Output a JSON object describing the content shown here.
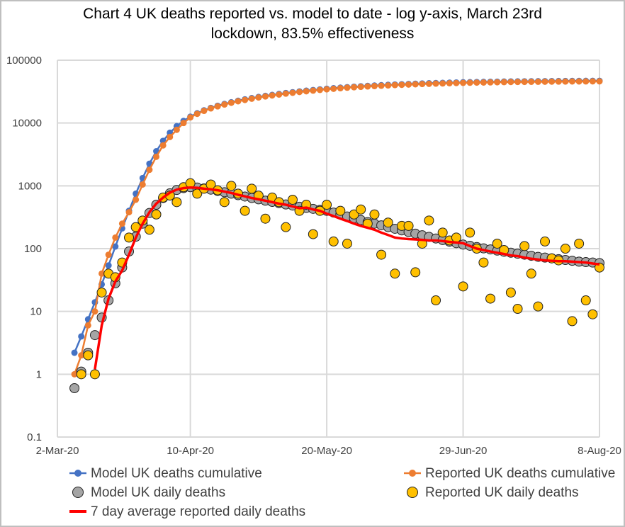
{
  "chart_data": {
    "type": "scatter",
    "title_lines": [
      "Chart 4 UK deaths reported vs. model to date - log y-axis, March 23rd",
      "lockdown, 83.5% effectiveness"
    ],
    "xlabel": "",
    "ylabel": "",
    "x_range": [
      "2020-03-02",
      "2020-08-08"
    ],
    "y_scale": "log",
    "y_range": [
      0.1,
      100000
    ],
    "grid": true,
    "legend_position": "bottom",
    "x_ticks": [
      {
        "date": "2020-03-02",
        "label": "2-Mar-20"
      },
      {
        "date": "2020-04-10",
        "label": "10-Apr-20"
      },
      {
        "date": "2020-05-20",
        "label": "20-May-20"
      },
      {
        "date": "2020-06-29",
        "label": "29-Jun-20"
      },
      {
        "date": "2020-08-08",
        "label": "8-Aug-20"
      }
    ],
    "y_ticks": [
      {
        "value": 0.1,
        "label": "0.1"
      },
      {
        "value": 1,
        "label": "1"
      },
      {
        "value": 10,
        "label": "10"
      },
      {
        "value": 100,
        "label": "100"
      },
      {
        "value": 1000,
        "label": "1000"
      },
      {
        "value": 10000,
        "label": "10000"
      },
      {
        "value": 100000,
        "label": "100000"
      }
    ],
    "x": [
      "2020-03-07",
      "2020-03-09",
      "2020-03-11",
      "2020-03-13",
      "2020-03-15",
      "2020-03-17",
      "2020-03-19",
      "2020-03-21",
      "2020-03-23",
      "2020-03-25",
      "2020-03-27",
      "2020-03-29",
      "2020-03-31",
      "2020-04-02",
      "2020-04-04",
      "2020-04-06",
      "2020-04-08",
      "2020-04-10",
      "2020-04-12",
      "2020-04-14",
      "2020-04-16",
      "2020-04-18",
      "2020-04-20",
      "2020-04-22",
      "2020-04-24",
      "2020-04-26",
      "2020-04-28",
      "2020-04-30",
      "2020-05-02",
      "2020-05-04",
      "2020-05-06",
      "2020-05-08",
      "2020-05-10",
      "2020-05-12",
      "2020-05-14",
      "2020-05-16",
      "2020-05-18",
      "2020-05-20",
      "2020-05-22",
      "2020-05-24",
      "2020-05-26",
      "2020-05-28",
      "2020-05-30",
      "2020-06-01",
      "2020-06-03",
      "2020-06-05",
      "2020-06-07",
      "2020-06-09",
      "2020-06-11",
      "2020-06-13",
      "2020-06-15",
      "2020-06-17",
      "2020-06-19",
      "2020-06-21",
      "2020-06-23",
      "2020-06-25",
      "2020-06-27",
      "2020-06-29",
      "2020-07-01",
      "2020-07-03",
      "2020-07-05",
      "2020-07-07",
      "2020-07-09",
      "2020-07-11",
      "2020-07-13",
      "2020-07-15",
      "2020-07-17",
      "2020-07-19",
      "2020-07-21",
      "2020-07-23",
      "2020-07-25",
      "2020-07-27",
      "2020-07-29",
      "2020-07-31",
      "2020-08-02",
      "2020-08-04",
      "2020-08-06",
      "2020-08-08"
    ],
    "series": [
      {
        "name": "Model UK deaths cumulative",
        "style": "line-marker",
        "color": "#4472c4",
        "values": [
          2.2,
          4,
          7.5,
          14,
          27,
          54,
          108,
          210,
          400,
          750,
          1330,
          2250,
          3550,
          5200,
          7000,
          8900,
          10800,
          12600,
          14300,
          15900,
          17400,
          18800,
          20100,
          21400,
          22600,
          23800,
          24900,
          26000,
          27000,
          28000,
          29000,
          30000,
          30900,
          31800,
          32700,
          33500,
          34300,
          35100,
          35800,
          36500,
          37200,
          37800,
          38400,
          39000,
          39500,
          40000,
          40500,
          41000,
          41400,
          41800,
          42200,
          42600,
          43000,
          43300,
          43600,
          43900,
          44200,
          44500,
          44700,
          44900,
          45100,
          45300,
          45500,
          45700,
          45900,
          46000,
          46100,
          46200,
          46300,
          46400,
          46500,
          46600,
          46700,
          46800,
          46850,
          46900,
          46950,
          47000
        ]
      },
      {
        "name": "Reported UK deaths cumulative",
        "style": "line-marker",
        "color": "#ed7d31",
        "values": [
          1,
          2,
          6,
          10,
          40,
          80,
          150,
          250,
          380,
          600,
          1050,
          1800,
          2900,
          4400,
          6000,
          7800,
          10000,
          12300,
          14000,
          15600,
          17100,
          18400,
          19700,
          21000,
          22200,
          23300,
          24400,
          25500,
          26500,
          27500,
          28400,
          29400,
          30300,
          31200,
          32000,
          32800,
          33600,
          34400,
          35100,
          35800,
          36500,
          37100,
          37700,
          38200,
          38700,
          39200,
          39700,
          40200,
          40600,
          41000,
          41400,
          41800,
          42100,
          42400,
          42700,
          43000,
          43300,
          43600,
          43800,
          44000,
          44200,
          44400,
          44600,
          44800,
          45000,
          45100,
          45200,
          45300,
          45400,
          45500,
          45600,
          45700,
          45800,
          45900,
          45950,
          46000,
          46050,
          46100
        ]
      },
      {
        "name": "Model UK daily deaths",
        "style": "marker",
        "color": "#a5a5a5",
        "values": [
          0.6,
          1.1,
          2.2,
          4.2,
          8,
          15,
          28,
          50,
          90,
          155,
          250,
          370,
          500,
          640,
          760,
          860,
          920,
          950,
          940,
          910,
          870,
          830,
          790,
          750,
          710,
          675,
          640,
          610,
          580,
          555,
          530,
          505,
          485,
          465,
          445,
          430,
          415,
          400,
          375,
          350,
          325,
          305,
          285,
          265,
          250,
          235,
          220,
          207,
          195,
          184,
          173,
          163,
          154,
          145,
          137,
          129,
          122,
          116,
          111,
          106,
          101,
          97,
          93,
          89,
          86,
          83,
          80,
          77,
          74,
          72,
          70,
          68,
          66,
          64,
          62,
          61,
          60,
          59
        ]
      },
      {
        "name": "Reported UK daily deaths",
        "style": "marker",
        "color": "#ffc000",
        "values": [
          null,
          1,
          2,
          1,
          20,
          40,
          35,
          60,
          150,
          220,
          280,
          200,
          350,
          650,
          700,
          550,
          950,
          1100,
          750,
          900,
          1050,
          850,
          550,
          1000,
          750,
          400,
          900,
          700,
          300,
          650,
          550,
          220,
          600,
          400,
          500,
          170,
          400,
          500,
          130,
          400,
          120,
          350,
          420,
          250,
          350,
          80,
          260,
          40,
          230,
          230,
          42,
          120,
          280,
          15,
          180,
          135,
          150,
          25,
          180,
          100,
          60,
          16,
          120,
          95,
          20,
          11,
          110,
          40,
          12,
          130,
          70,
          65,
          100,
          7,
          120,
          15,
          9,
          50
        ]
      },
      {
        "name": "7 day average reported daily deaths",
        "style": "line",
        "color": "#ff0000",
        "values": [
          null,
          null,
          null,
          1.2,
          6,
          16,
          30,
          45,
          80,
          150,
          250,
          380,
          520,
          650,
          780,
          870,
          920,
          940,
          930,
          900,
          880,
          850,
          810,
          770,
          720,
          680,
          640,
          610,
          580,
          550,
          520,
          500,
          470,
          440,
          450,
          420,
          400,
          360,
          330,
          300,
          275,
          250,
          230,
          215,
          200,
          180,
          165,
          150,
          145,
          142,
          140,
          138,
          135,
          135,
          132,
          128,
          125,
          122,
          110,
          100,
          95,
          90,
          86,
          82,
          78,
          76,
          72,
          69,
          67,
          65,
          64,
          63,
          63,
          62,
          61,
          60,
          58,
          56
        ]
      }
    ]
  }
}
